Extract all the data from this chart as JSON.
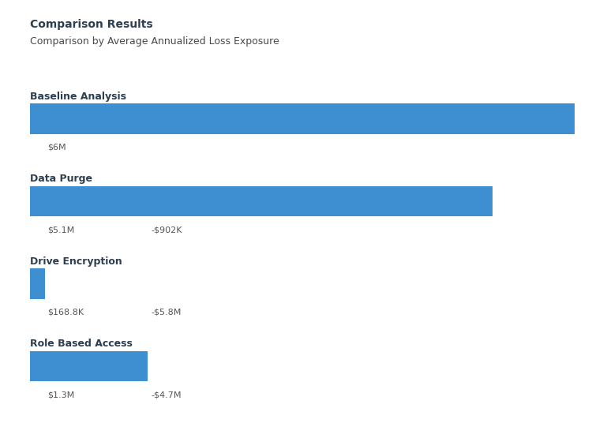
{
  "title": "Comparison Results",
  "subtitle": "Comparison by Average Annualized Loss Exposure",
  "title_color": "#2d3e50",
  "subtitle_color": "#4a4a4a",
  "background_color": "#ffffff",
  "blue_color": "#3d8fd1",
  "gray_color": "#d9d9d9",
  "label_color": "#555555",
  "section_label_color": "#2d3e50",
  "baseline_value": 6000000,
  "sections": [
    {
      "name": "Baseline Analysis",
      "value": 6000000,
      "reduction": 0,
      "value_label": "$6M",
      "reduction_label": ""
    },
    {
      "name": "Data Purge",
      "value": 5100000,
      "reduction": 902000,
      "value_label": "$5.1M",
      "reduction_label": "-$902K"
    },
    {
      "name": "Drive Encryption",
      "value": 168800,
      "reduction": 5831200,
      "value_label": "$168.8K",
      "reduction_label": "-$5.8M"
    },
    {
      "name": "Role Based Access",
      "value": 1300000,
      "reduction": 4700000,
      "value_label": "$1.3M",
      "reduction_label": "-$4.7M"
    }
  ],
  "title_fontsize": 10,
  "subtitle_fontsize": 9,
  "label_fontsize": 8,
  "section_label_fontsize": 9
}
